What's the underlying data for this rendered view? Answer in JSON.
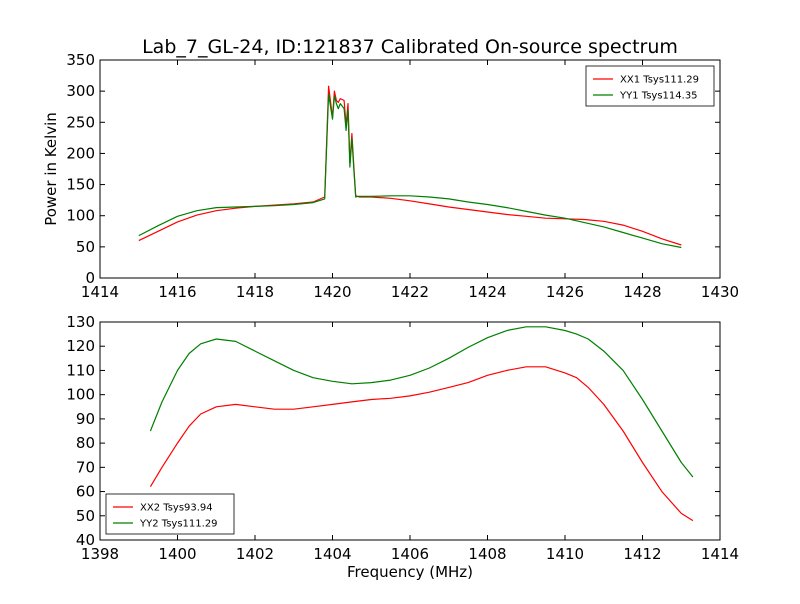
{
  "figure_title": "Lab_7_GL-24, ID:121837 Calibrated On-source spectrum",
  "colors": {
    "xx": "#ff0000",
    "yy": "#008000",
    "axes": "#000000",
    "background": "#ffffff"
  },
  "chart_data": [
    {
      "type": "line",
      "title": "Lab_7_GL-24, ID:121837 Calibrated On-source spectrum",
      "xlabel": "",
      "ylabel": "Power in Kelvin",
      "xlim": [
        1414,
        1430
      ],
      "ylim": [
        0,
        350
      ],
      "xticks": [
        1414,
        1416,
        1418,
        1420,
        1422,
        1424,
        1426,
        1428,
        1430
      ],
      "yticks": [
        0,
        50,
        100,
        150,
        200,
        250,
        300,
        350
      ],
      "grid": false,
      "legend_position": "upper right",
      "series": [
        {
          "name": "XX1 Tsys111.29",
          "color": "#ff0000",
          "x": [
            1415,
            1415.5,
            1416,
            1416.5,
            1417,
            1417.5,
            1418,
            1418.5,
            1419,
            1419.5,
            1419.8,
            1419.9,
            1420.0,
            1420.05,
            1420.1,
            1420.15,
            1420.2,
            1420.3,
            1420.35,
            1420.4,
            1420.45,
            1420.5,
            1420.55,
            1420.6,
            1420.65,
            1420.7,
            1421,
            1421.5,
            1422,
            1422.5,
            1423,
            1423.5,
            1424,
            1424.5,
            1425,
            1425.5,
            1426,
            1426.5,
            1427,
            1427.5,
            1428,
            1428.5,
            1429
          ],
          "y": [
            60,
            75,
            90,
            101,
            108,
            112,
            115,
            117,
            119,
            122,
            130,
            308,
            258,
            300,
            285,
            282,
            288,
            285,
            245,
            280,
            185,
            232,
            180,
            132,
            131,
            130,
            130,
            128,
            124,
            119,
            114,
            110,
            106,
            102,
            99,
            96,
            95,
            94,
            91,
            85,
            75,
            63,
            53
          ]
        },
        {
          "name": "YY1 Tsys114.35",
          "color": "#008000",
          "x": [
            1415,
            1415.5,
            1416,
            1416.5,
            1417,
            1417.5,
            1418,
            1418.5,
            1419,
            1419.5,
            1419.8,
            1419.9,
            1420.0,
            1420.05,
            1420.1,
            1420.15,
            1420.2,
            1420.3,
            1420.35,
            1420.4,
            1420.45,
            1420.5,
            1420.55,
            1420.6,
            1420.65,
            1420.7,
            1421,
            1421.5,
            1422,
            1422.5,
            1423,
            1423.5,
            1424,
            1424.5,
            1425,
            1425.5,
            1426,
            1426.5,
            1427,
            1427.5,
            1428,
            1428.5,
            1429
          ],
          "y": [
            68,
            84,
            99,
            108,
            113,
            114,
            115,
            116,
            118,
            121,
            127,
            295,
            255,
            292,
            280,
            272,
            280,
            272,
            237,
            270,
            178,
            224,
            175,
            130,
            131,
            131,
            131,
            132,
            132,
            130,
            127,
            122,
            118,
            113,
            107,
            101,
            96,
            89,
            82,
            73,
            64,
            55,
            49
          ]
        }
      ]
    },
    {
      "type": "line",
      "title": "",
      "xlabel": "Frequency (MHz)",
      "ylabel": "",
      "xlim": [
        1398,
        1414
      ],
      "ylim": [
        40,
        130
      ],
      "xticks": [
        1398,
        1400,
        1402,
        1404,
        1406,
        1408,
        1410,
        1412,
        1414
      ],
      "yticks": [
        40,
        50,
        60,
        70,
        80,
        90,
        100,
        110,
        120,
        130
      ],
      "grid": false,
      "legend_position": "lower left",
      "series": [
        {
          "name": "XX2 Tsys93.94",
          "color": "#ff0000",
          "x": [
            1399.3,
            1399.6,
            1400,
            1400.3,
            1400.6,
            1401,
            1401.5,
            1402,
            1402.5,
            1403,
            1403.5,
            1404,
            1404.5,
            1405,
            1405.5,
            1406,
            1406.5,
            1407,
            1407.5,
            1408,
            1408.5,
            1409,
            1409.5,
            1410,
            1410.3,
            1410.6,
            1411,
            1411.5,
            1412,
            1412.5,
            1413,
            1413.3
          ],
          "y": [
            62,
            70,
            80,
            87,
            92,
            95,
            96,
            95,
            94,
            94,
            95,
            96,
            97,
            98,
            98.5,
            99.5,
            101,
            103,
            105,
            108,
            110,
            111.5,
            111.5,
            109,
            107,
            103,
            96,
            85,
            72,
            60,
            51,
            48
          ]
        },
        {
          "name": "YY2 Tsys111.29",
          "color": "#008000",
          "x": [
            1399.3,
            1399.6,
            1400,
            1400.3,
            1400.6,
            1401,
            1401.5,
            1402,
            1402.5,
            1403,
            1403.5,
            1404,
            1404.5,
            1405,
            1405.5,
            1406,
            1406.5,
            1407,
            1407.5,
            1408,
            1408.5,
            1409,
            1409.5,
            1410,
            1410.3,
            1410.6,
            1411,
            1411.5,
            1412,
            1412.5,
            1413,
            1413.3
          ],
          "y": [
            85,
            97,
            110,
            117,
            121,
            123,
            122,
            118,
            114,
            110,
            107,
            105.5,
            104.5,
            105,
            106,
            108,
            111,
            115,
            119.5,
            123.5,
            126.5,
            128,
            128,
            126.5,
            125,
            123,
            118,
            110,
            98,
            85,
            72,
            66
          ]
        }
      ]
    }
  ]
}
